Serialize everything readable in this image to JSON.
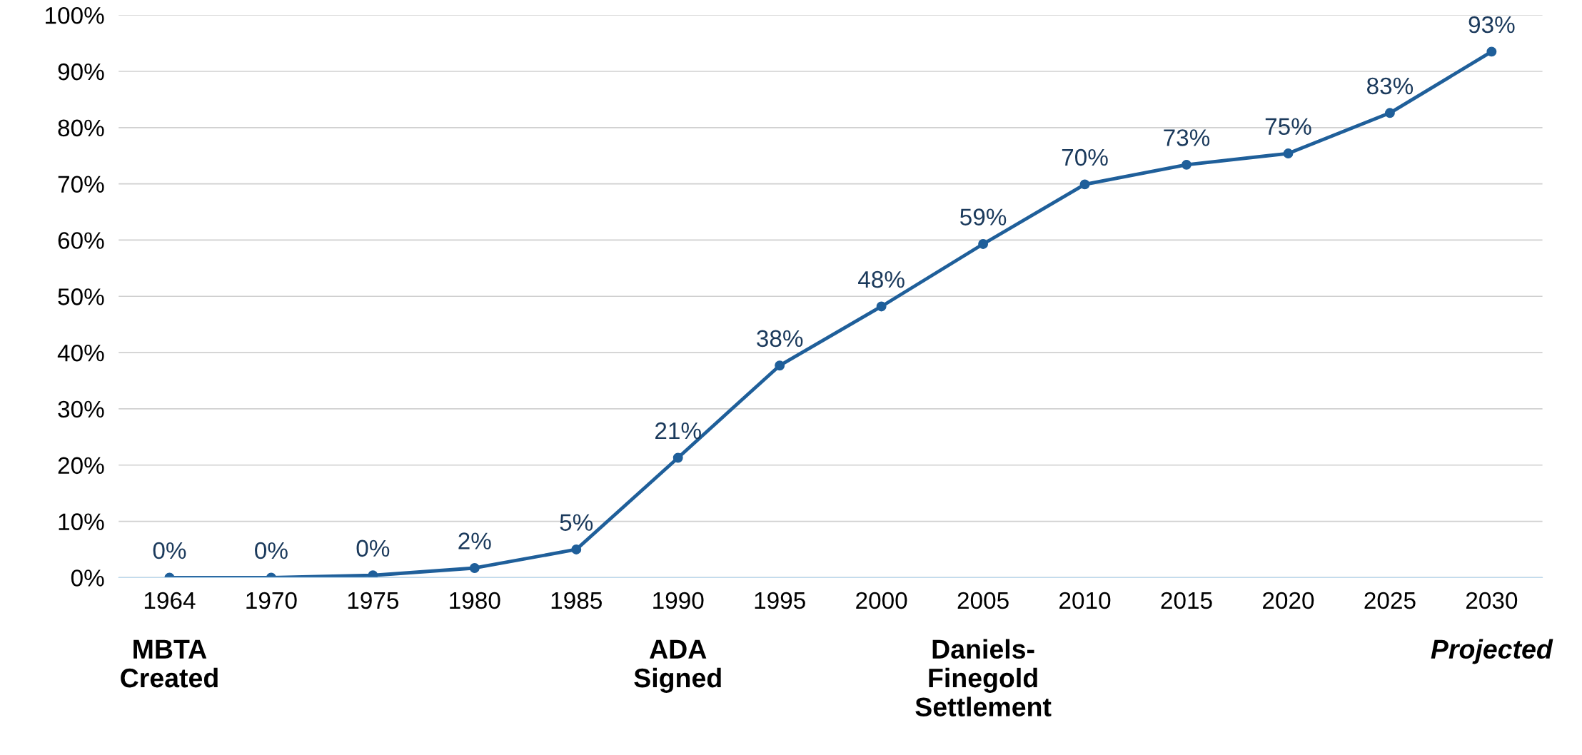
{
  "chart_data": {
    "type": "line",
    "categories": [
      "1964",
      "1970",
      "1975",
      "1980",
      "1985",
      "1990",
      "1995",
      "2000",
      "2005",
      "2010",
      "2015",
      "2020",
      "2025",
      "2030"
    ],
    "series": [
      {
        "color": "#1f5f9a",
        "values": [
          0,
          0,
          0.4,
          1.7,
          5,
          21.3,
          37.7,
          48.2,
          59.3,
          69.9,
          73.4,
          75.4,
          82.6,
          93.5
        ],
        "value_labels": [
          "0%",
          "0%",
          "0%",
          "2%",
          "5%",
          "21%",
          "38%",
          "48%",
          "59%",
          "70%",
          "73%",
          "75%",
          "83%",
          "93%"
        ]
      }
    ],
    "ylim": [
      0,
      100
    ],
    "yticks": [
      {
        "value": 0,
        "label": "0%"
      },
      {
        "value": 10,
        "label": "10%"
      },
      {
        "value": 20,
        "label": "20%"
      },
      {
        "value": 30,
        "label": "30%"
      },
      {
        "value": 40,
        "label": "40%"
      },
      {
        "value": 50,
        "label": "50%"
      },
      {
        "value": 60,
        "label": "60%"
      },
      {
        "value": 70,
        "label": "70%"
      },
      {
        "value": 80,
        "label": "80%"
      },
      {
        "value": 90,
        "label": "90%"
      },
      {
        "value": 100,
        "label": "100%"
      }
    ],
    "grid": "y",
    "marker": "circle",
    "line_style": "solid",
    "annotations": [
      "MBTA\nCreated",
      "ADA\nSigned",
      "Daniels-\nFinegold\nSettlement",
      "Projected"
    ]
  }
}
